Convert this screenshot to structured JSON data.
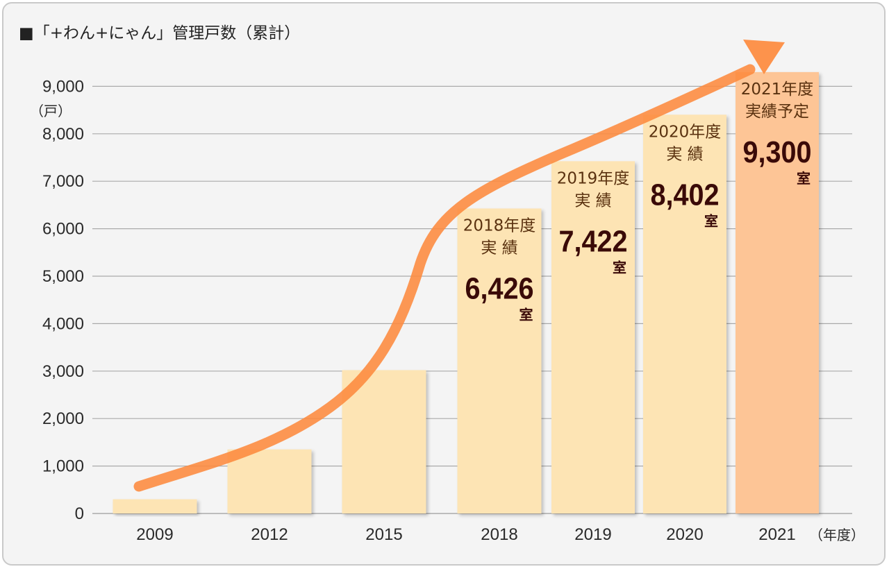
{
  "title": "■「+わん+にゃん」管理戸数（累計）",
  "chart_data": {
    "type": "bar",
    "title": "■「+わん+にゃん」管理戸数（累計）",
    "ylabel": "（戸）",
    "xlabel": "（年度）",
    "ylim": [
      0,
      9000
    ],
    "yticks": [
      "0",
      "1,000",
      "2,000",
      "3,000",
      "4,000",
      "5,000",
      "6,000",
      "7,000",
      "8,000",
      "9,000"
    ],
    "grid": true,
    "categories": [
      "2009",
      "2012",
      "2015",
      "2018",
      "2019",
      "2020",
      "2021"
    ],
    "values": [
      300,
      1350,
      3020,
      6426,
      7422,
      8402,
      9300
    ],
    "bar_colors": [
      "#fde4b4",
      "#fde4b4",
      "#fde4b4",
      "#fde4b4",
      "#fde4b4",
      "#fde4b4",
      "#fdc596"
    ],
    "trend_color": "#fd8a3d",
    "annotations": [
      {
        "category": "2018",
        "heading": [
          "2018年度",
          "実 績"
        ],
        "value": "6,426",
        "unit": "室"
      },
      {
        "category": "2019",
        "heading": [
          "2019年度",
          "実 績"
        ],
        "value": "7,422",
        "unit": "室"
      },
      {
        "category": "2020",
        "heading": [
          "2020年度",
          "実 績"
        ],
        "value": "8,402",
        "unit": "室"
      },
      {
        "category": "2021",
        "heading": [
          "2021年度",
          "実績予定"
        ],
        "value": "9,300",
        "unit": "室"
      }
    ]
  }
}
